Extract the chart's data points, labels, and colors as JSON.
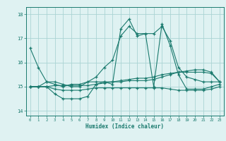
{
  "x": [
    0,
    1,
    2,
    3,
    4,
    5,
    6,
    7,
    8,
    9,
    10,
    11,
    12,
    13,
    14,
    15,
    16,
    17,
    18,
    19,
    20,
    21,
    22,
    23
  ],
  "line1": [
    16.6,
    15.8,
    15.2,
    15.1,
    15.0,
    15.1,
    15.1,
    15.2,
    15.4,
    15.8,
    16.1,
    17.1,
    17.5,
    17.2,
    17.2,
    17.2,
    17.5,
    16.9,
    15.8,
    15.4,
    15.3,
    15.2,
    15.2,
    15.2
  ],
  "line2": [
    15.0,
    15.0,
    15.0,
    14.7,
    14.5,
    14.5,
    14.5,
    14.6,
    15.1,
    15.2,
    15.1,
    17.4,
    17.8,
    17.1,
    17.2,
    15.0,
    17.6,
    16.7,
    15.5,
    14.9,
    14.9,
    14.9,
    15.0,
    15.1
  ],
  "line3": [
    15.0,
    15.0,
    15.2,
    15.2,
    15.1,
    15.0,
    15.0,
    15.2,
    15.2,
    15.2,
    15.2,
    15.2,
    15.25,
    15.25,
    15.25,
    15.3,
    15.4,
    15.5,
    15.6,
    15.65,
    15.7,
    15.7,
    15.6,
    15.2
  ],
  "line4": [
    15.0,
    15.0,
    15.0,
    14.9,
    14.85,
    14.85,
    14.85,
    14.9,
    14.95,
    14.95,
    14.95,
    14.95,
    14.95,
    14.95,
    14.95,
    14.95,
    14.95,
    14.9,
    14.85,
    14.85,
    14.85,
    14.85,
    14.9,
    15.0
  ],
  "line5": [
    15.0,
    15.0,
    15.0,
    15.05,
    15.05,
    15.05,
    15.05,
    15.05,
    15.1,
    15.15,
    15.2,
    15.25,
    15.3,
    15.35,
    15.35,
    15.4,
    15.5,
    15.55,
    15.6,
    15.6,
    15.6,
    15.6,
    15.55,
    15.2
  ],
  "color": "#1a7a6e",
  "bg_color": "#dff2f2",
  "grid_color": "#aad4d4",
  "xlabel": "Humidex (Indice chaleur)",
  "ylim": [
    13.8,
    18.3
  ],
  "xlim": [
    -0.5,
    23.5
  ],
  "yticks": [
    14,
    15,
    16,
    17,
    18
  ],
  "xticks": [
    0,
    1,
    2,
    3,
    4,
    5,
    6,
    7,
    8,
    9,
    10,
    11,
    12,
    13,
    14,
    15,
    16,
    17,
    18,
    19,
    20,
    21,
    22,
    23
  ]
}
